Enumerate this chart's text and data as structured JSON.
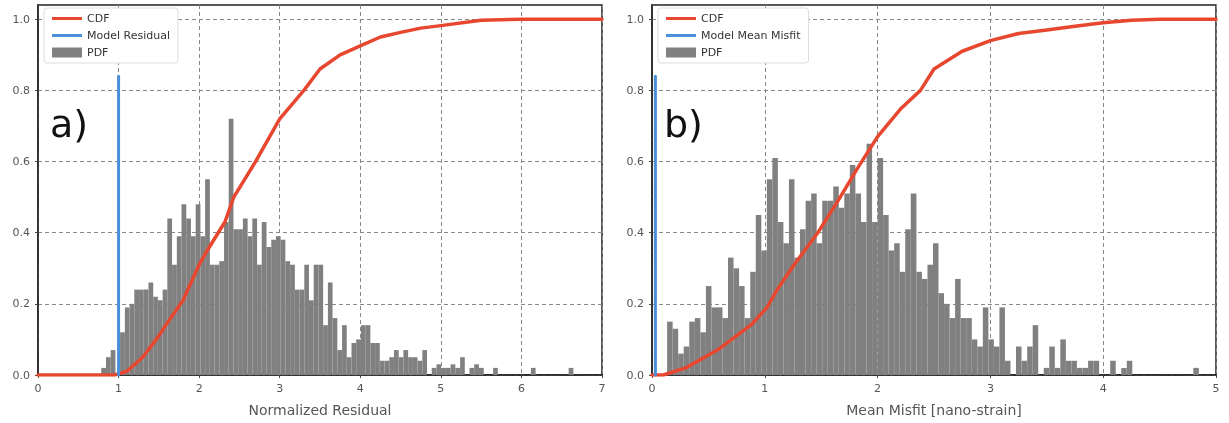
{
  "chart_data": [
    {
      "type": "histogram",
      "xlabel": "Normalized Residual",
      "annotations": [
        "a)"
      ],
      "legend": "top left",
      "grid": true,
      "xlim": [
        0,
        7
      ],
      "xticks": [
        0,
        1,
        2,
        3,
        4,
        5,
        6,
        7
      ],
      "ylim": [
        0,
        1.04
      ],
      "yticks": [
        {
          "value": 0,
          "label": "0.0"
        },
        {
          "value": 0.2,
          "label": "0.2"
        },
        {
          "value": 0.4,
          "label": "0.4"
        },
        {
          "value": 0.6,
          "label": "0.6"
        },
        {
          "value": 0.8,
          "label": "0.8"
        },
        {
          "value": 1,
          "label": "1.0"
        }
      ],
      "bins": [
        0.785,
        0.844,
        0.902,
        0.961,
        1.019,
        1.078,
        1.137,
        1.195,
        1.254,
        1.312,
        1.371,
        1.43,
        1.488,
        1.547,
        1.605,
        1.664,
        1.723,
        1.781,
        1.84,
        1.898,
        1.957,
        2.016,
        2.074,
        2.133,
        2.191,
        2.25,
        2.309,
        2.367,
        2.426,
        2.484,
        2.543,
        2.602,
        2.66,
        2.719,
        2.777,
        2.836,
        2.895,
        2.953,
        3.012,
        3.07,
        3.129,
        3.188,
        3.246,
        3.305,
        3.363,
        3.422,
        3.481,
        3.539,
        3.598,
        3.656,
        3.715,
        3.774,
        3.832,
        3.891,
        3.949,
        4.008,
        4.067,
        4.125,
        4.184,
        4.242,
        4.301,
        4.36,
        4.418,
        4.477,
        4.535,
        4.594,
        4.653,
        4.711,
        4.77,
        4.828,
        4.887,
        4.946,
        5.004,
        5.063,
        5.121,
        5.18,
        5.239,
        5.297,
        5.356,
        5.414,
        5.473,
        5.532,
        5.59,
        5.649,
        5.707,
        5.766,
        5.825,
        5.883,
        5.942,
        6.0,
        6.059,
        6.118,
        6.176,
        6.235,
        6.293,
        6.352,
        6.411,
        6.469,
        6.528,
        6.586,
        6.645
      ],
      "series": [
        {
          "name": "CDF",
          "type": "line",
          "color": "#e8472f",
          "x": [
            0,
            0.95,
            1.1,
            1.3,
            1.5,
            1.6,
            1.8,
            2.0,
            2.1,
            2.32,
            2.43,
            2.7,
            3.0,
            3.3,
            3.5,
            3.75,
            4.0,
            4.25,
            4.5,
            4.75,
            5.0,
            5.5,
            6,
            7
          ],
          "values": [
            0,
            0,
            0.01,
            0.05,
            0.11,
            0.145,
            0.21,
            0.31,
            0.35,
            0.43,
            0.5,
            0.6,
            0.72,
            0.8,
            0.86,
            0.9,
            0.925,
            0.95,
            0.963,
            0.975,
            0.982,
            0.997,
            1.0,
            1.0
          ]
        },
        {
          "name": "Model Residual",
          "type": "line",
          "color": "#4a90d9",
          "x": [
            1,
            1
          ],
          "values": [
            0,
            0.84
          ]
        },
        {
          "name": "PDF",
          "color": "#808080",
          "values": [
            0.02,
            0.05,
            0.07,
            null,
            0.12,
            0.19,
            0.2,
            0.24,
            0.24,
            0.24,
            0.26,
            0.22,
            0.21,
            0.24,
            0.44,
            0.31,
            0.39,
            0.48,
            0.44,
            0.39,
            0.48,
            0.39,
            0.55,
            0.31,
            0.31,
            0.32,
            0.43,
            0.72,
            0.41,
            0.41,
            0.44,
            0.39,
            0.44,
            0.31,
            0.43,
            0.36,
            0.38,
            0.39,
            0.38,
            0.32,
            0.31,
            0.24,
            0.24,
            0.31,
            0.21,
            0.31,
            0.31,
            0.14,
            0.26,
            0.16,
            0.07,
            0.14,
            0.05,
            0.09,
            0.1,
            0.14,
            0.14,
            0.09,
            0.09,
            0.04,
            0.04,
            0.05,
            0.07,
            0.05,
            0.07,
            0.05,
            0.05,
            0.04,
            0.07,
            0,
            0.02,
            0.03,
            0.02,
            0.02,
            0.03,
            0.02,
            0.05,
            0,
            0.02,
            0.03,
            0.02,
            0,
            0,
            0.02,
            0,
            0,
            0,
            0,
            0,
            0,
            0,
            0.02,
            0,
            0,
            0,
            0,
            0,
            0,
            0,
            0.02
          ]
        }
      ]
    },
    {
      "type": "histogram",
      "xlabel": "Mean Misfit [nano-strain]",
      "annotations": [
        "b)"
      ],
      "legend": "top left",
      "grid": true,
      "xlim": [
        0,
        5
      ],
      "xticks": [
        0,
        1,
        2,
        3,
        4,
        5
      ],
      "ylim": [
        0,
        1.04
      ],
      "yticks": [
        {
          "value": 0,
          "label": "0.0"
        },
        {
          "value": 0.2,
          "label": "0.2"
        },
        {
          "value": 0.4,
          "label": "0.4"
        },
        {
          "value": 0.6,
          "label": "0.6"
        },
        {
          "value": 0.8,
          "label": "0.8"
        },
        {
          "value": 1,
          "label": "1.0"
        }
      ],
      "bins": [
        0.134,
        0.183,
        0.232,
        0.281,
        0.33,
        0.38,
        0.429,
        0.478,
        0.527,
        0.576,
        0.625,
        0.674,
        0.723,
        0.772,
        0.821,
        0.871,
        0.92,
        0.969,
        1.018,
        1.067,
        1.116,
        1.165,
        1.214,
        1.263,
        1.312,
        1.362,
        1.411,
        1.46,
        1.509,
        1.558,
        1.607,
        1.656,
        1.705,
        1.754,
        1.803,
        1.853,
        1.902,
        1.951,
        2.0,
        2.049,
        2.098,
        2.147,
        2.196,
        2.245,
        2.294,
        2.344,
        2.393,
        2.442,
        2.491,
        2.54,
        2.589,
        2.638,
        2.687,
        2.736,
        2.785,
        2.835,
        2.884,
        2.933,
        2.982,
        3.031,
        3.08,
        3.129,
        3.178,
        3.227,
        3.276,
        3.326,
        3.375,
        3.424,
        3.473,
        3.522,
        3.571,
        3.62,
        3.669,
        3.718,
        3.767,
        3.817,
        3.866,
        3.915,
        3.964,
        4.013,
        4.062,
        4.111,
        4.16,
        4.209,
        4.258,
        4.308,
        4.357,
        4.406,
        4.455,
        4.504,
        4.553,
        4.602,
        4.651,
        4.7,
        4.749,
        4.799,
        4.848
      ],
      "series": [
        {
          "name": "CDF",
          "type": "line",
          "color": "#e8472f",
          "x": [
            0,
            0.1,
            0.3,
            0.58,
            0.875,
            1.02,
            1.11,
            1.26,
            1.47,
            1.65,
            1.82,
            2.0,
            2.21,
            2.38,
            2.5,
            2.75,
            3.0,
            3.25,
            3.5,
            3.75,
            4.0,
            4.25,
            4.5,
            5
          ],
          "values": [
            0,
            0,
            0.02,
            0.07,
            0.14,
            0.19,
            0.24,
            0.31,
            0.4,
            0.49,
            0.58,
            0.67,
            0.75,
            0.8,
            0.86,
            0.91,
            0.94,
            0.96,
            0.97,
            0.98,
            0.99,
            0.997,
            1.0,
            1.0
          ]
        },
        {
          "name": "Model Mean Misfit",
          "type": "line",
          "color": "#4a90d9",
          "x": [
            0.03,
            0.03
          ],
          "values": [
            0,
            0.84
          ]
        },
        {
          "name": "PDF",
          "color": "#808080",
          "values": [
            0.15,
            0.13,
            0.06,
            0.08,
            0.15,
            0.16,
            0.12,
            0.25,
            0.19,
            0.19,
            0.16,
            0.33,
            0.3,
            0.25,
            0.16,
            0.29,
            0.45,
            0.35,
            0.55,
            0.61,
            0.43,
            0.37,
            0.55,
            0.33,
            0.41,
            0.49,
            0.51,
            0.37,
            0.49,
            0.49,
            0.53,
            0.47,
            0.51,
            0.59,
            0.51,
            0.43,
            0.65,
            0.43,
            0.61,
            0.45,
            0.35,
            0.37,
            0.29,
            0.41,
            0.51,
            0.29,
            0.27,
            0.31,
            0.37,
            0.23,
            0.2,
            0.16,
            0.27,
            0.16,
            0.16,
            0.1,
            0.08,
            0.19,
            0.1,
            0.08,
            0.19,
            0.04,
            0,
            0.08,
            0.04,
            0.08,
            0.14,
            0,
            0.02,
            0.08,
            0.02,
            0.1,
            0.04,
            0.04,
            0.02,
            0.02,
            0.04,
            0.04,
            0,
            0,
            0.04,
            0,
            0.02,
            0.04,
            0,
            0,
            0,
            0,
            0,
            0,
            0,
            0,
            0,
            0,
            0,
            0.02
          ]
        }
      ]
    }
  ]
}
